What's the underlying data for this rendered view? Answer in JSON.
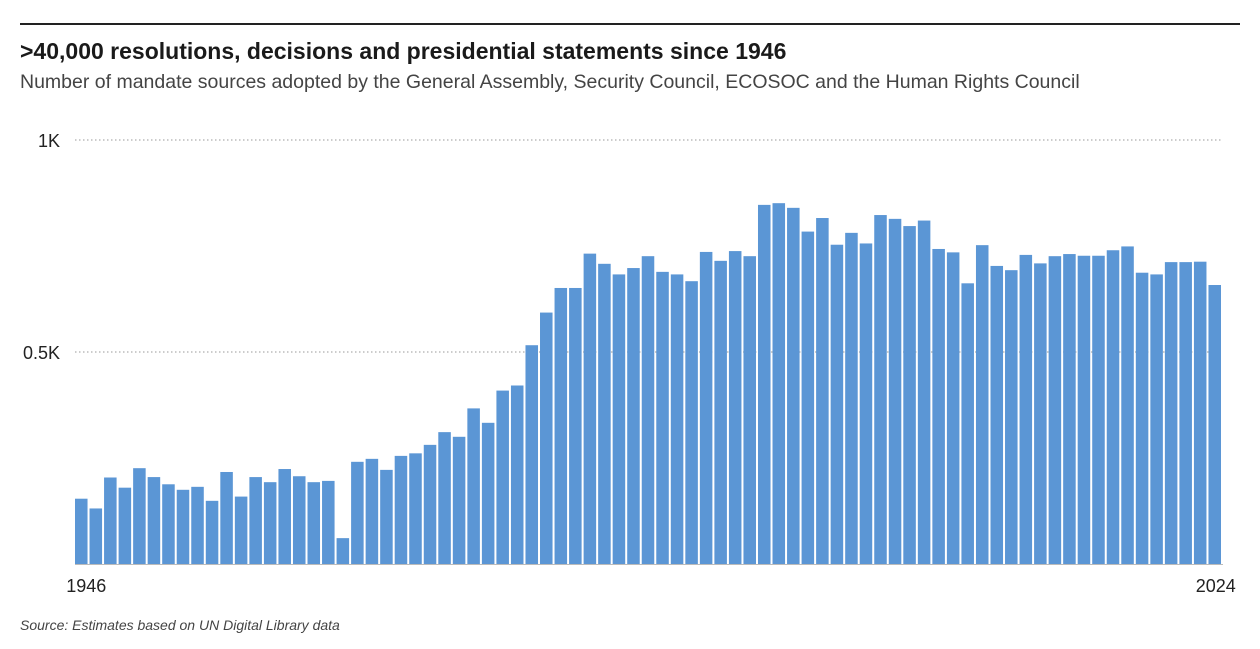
{
  "chart_data": {
    "type": "bar",
    "title": ">40,000 resolutions, decisions and presidential statements since 1946",
    "subtitle": "Number of mandate sources adopted by the General Assembly, Security Council, ECOSOC and the Human Rights Council",
    "source": "Source: Estimates based on UN Digital Library data",
    "xlabel": "",
    "ylabel": "",
    "ylim": [
      0,
      1000
    ],
    "y_ticks": [
      {
        "value": 500,
        "label": "0.5K"
      },
      {
        "value": 1000,
        "label": "1K"
      }
    ],
    "x_tick_labels": [
      "1946",
      "2024"
    ],
    "grid": "horizontal dotted",
    "bar_color": "#5b96d5",
    "categories": [
      1946,
      1947,
      1948,
      1949,
      1950,
      1951,
      1952,
      1953,
      1954,
      1955,
      1956,
      1957,
      1958,
      1959,
      1960,
      1961,
      1962,
      1963,
      1964,
      1965,
      1966,
      1967,
      1968,
      1969,
      1970,
      1971,
      1972,
      1973,
      1974,
      1975,
      1976,
      1977,
      1978,
      1979,
      1980,
      1981,
      1982,
      1983,
      1984,
      1985,
      1986,
      1987,
      1988,
      1989,
      1990,
      1991,
      1992,
      1993,
      1994,
      1995,
      1996,
      1997,
      1998,
      1999,
      2000,
      2001,
      2002,
      2003,
      2004,
      2005,
      2006,
      2007,
      2008,
      2009,
      2010,
      2011,
      2012,
      2013,
      2014,
      2015,
      2016,
      2017,
      2018,
      2019,
      2020,
      2021,
      2022,
      2023,
      2024
    ],
    "values": [
      154,
      131,
      204,
      180,
      226,
      205,
      188,
      175,
      182,
      149,
      217,
      159,
      205,
      193,
      224,
      207,
      193,
      196,
      61,
      241,
      248,
      222,
      255,
      261,
      281,
      311,
      300,
      367,
      333,
      409,
      421,
      516,
      593,
      651,
      651,
      732,
      708,
      683,
      698,
      726,
      689,
      683,
      667,
      736,
      715,
      738,
      726,
      847,
      851,
      840,
      784,
      816,
      753,
      781,
      756,
      823,
      814,
      797,
      810,
      743,
      735,
      662,
      752,
      703,
      693,
      729,
      709,
      726,
      731,
      727,
      727,
      740,
      749,
      687,
      683,
      712,
      712,
      713,
      658
    ]
  }
}
